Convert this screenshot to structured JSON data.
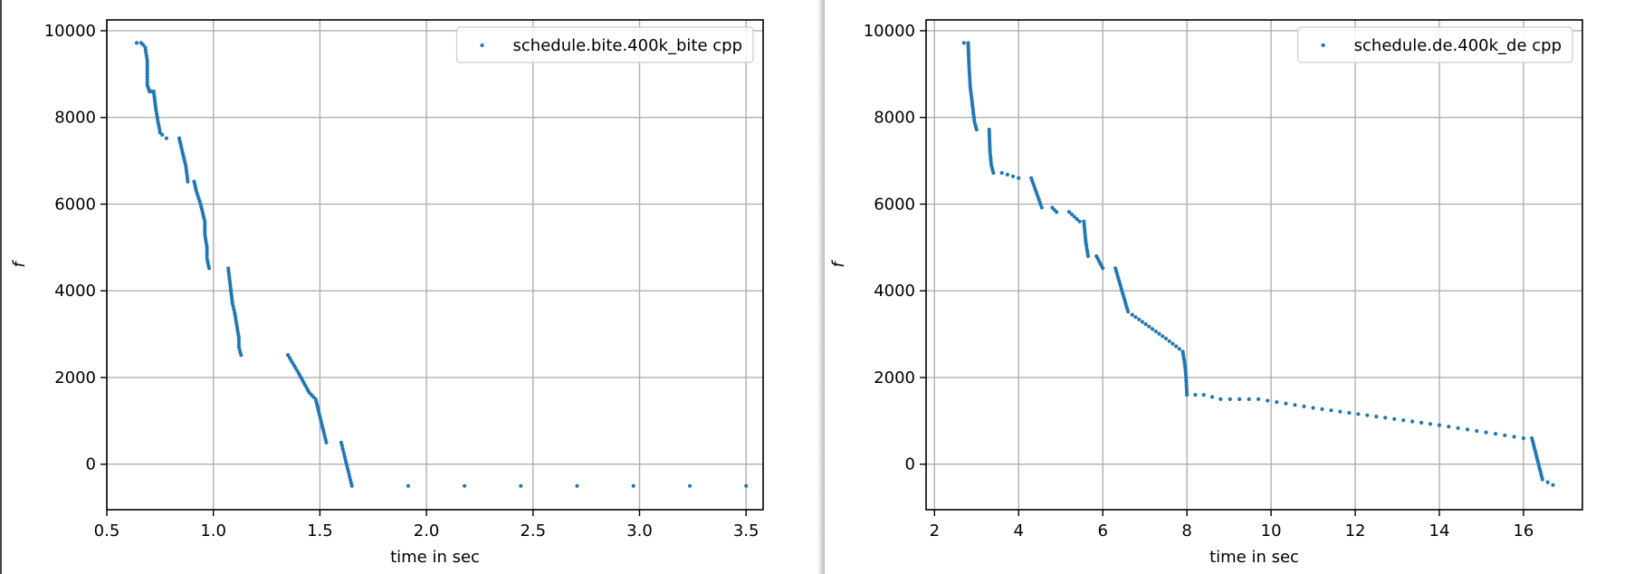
{
  "colors": {
    "series": "#1f77b4",
    "grid": "#b0b0b0",
    "frame": "#000000",
    "legend_border": "#cccccc"
  },
  "chart_data": [
    {
      "type": "scatter",
      "xlabel": "time in sec",
      "ylabel": "f",
      "xlim": [
        0.5,
        3.58
      ],
      "ylim": [
        -1050,
        10250
      ],
      "xticks": [
        0.5,
        1.0,
        1.5,
        2.0,
        2.5,
        3.0,
        3.5
      ],
      "xtick_labels": [
        "0.5",
        "1.0",
        "1.5",
        "2.0",
        "2.5",
        "3.0",
        "3.5"
      ],
      "yticks": [
        0,
        2000,
        4000,
        6000,
        8000,
        10000
      ],
      "ytick_labels": [
        "0",
        "2000",
        "4000",
        "6000",
        "8000",
        "10000"
      ],
      "grid": true,
      "legend_position": "top-right",
      "series": [
        {
          "name": "schedule.bite.400k_bite cpp",
          "points": [
            [
              0.64,
              9720
            ],
            [
              0.66,
              9720
            ],
            [
              0.67,
              9680
            ],
            [
              0.68,
              9620
            ],
            [
              0.69,
              9300
            ],
            [
              0.69,
              9000
            ],
            [
              0.69,
              8750
            ],
            [
              0.7,
              8600
            ],
            [
              0.71,
              8600
            ],
            [
              0.72,
              8600
            ],
            [
              0.73,
              8200
            ],
            [
              0.74,
              7900
            ],
            [
              0.75,
              7650
            ],
            [
              0.76,
              7600
            ],
            [
              0.78,
              7520
            ],
            [
              0.84,
              7520
            ],
            [
              0.85,
              7300
            ],
            [
              0.87,
              6900
            ],
            [
              0.88,
              6520
            ],
            [
              0.91,
              6520
            ],
            [
              0.92,
              6300
            ],
            [
              0.94,
              6000
            ],
            [
              0.96,
              5600
            ],
            [
              0.96,
              5300
            ],
            [
              0.97,
              5000
            ],
            [
              0.97,
              4750
            ],
            [
              0.98,
              4520
            ],
            [
              1.07,
              4520
            ],
            [
              1.08,
              4100
            ],
            [
              1.09,
              3700
            ],
            [
              1.1,
              3500
            ],
            [
              1.11,
              3200
            ],
            [
              1.12,
              2900
            ],
            [
              1.12,
              2700
            ],
            [
              1.13,
              2520
            ],
            [
              1.35,
              2520
            ],
            [
              1.4,
              2100
            ],
            [
              1.45,
              1650
            ],
            [
              1.48,
              1500
            ],
            [
              1.53,
              500
            ],
            [
              1.6,
              500
            ],
            [
              1.61,
              300
            ],
            [
              1.62,
              100
            ],
            [
              1.63,
              -100
            ],
            [
              1.64,
              -300
            ],
            [
              1.65,
              -500
            ],
            [
              3.5,
              -500
            ]
          ]
        }
      ]
    },
    {
      "type": "scatter",
      "xlabel": "time in sec",
      "ylabel": "f",
      "xlim": [
        1.8,
        17.4
      ],
      "ylim": [
        -1050,
        10250
      ],
      "xticks": [
        2,
        4,
        6,
        8,
        10,
        12,
        14,
        16
      ],
      "xtick_labels": [
        "2",
        "4",
        "6",
        "8",
        "10",
        "12",
        "14",
        "16"
      ],
      "yticks": [
        0,
        2000,
        4000,
        6000,
        8000,
        10000
      ],
      "ytick_labels": [
        "0",
        "2000",
        "4000",
        "6000",
        "8000",
        "10000"
      ],
      "grid": true,
      "legend_position": "top-right",
      "series": [
        {
          "name": "schedule.de.400k_de cpp",
          "points": [
            [
              2.7,
              9720
            ],
            [
              2.8,
              9720
            ],
            [
              2.82,
              9200
            ],
            [
              2.85,
              8700
            ],
            [
              2.9,
              8300
            ],
            [
              2.95,
              7900
            ],
            [
              3.0,
              7720
            ],
            [
              3.3,
              7720
            ],
            [
              3.32,
              7200
            ],
            [
              3.35,
              6900
            ],
            [
              3.4,
              6720
            ],
            [
              3.6,
              6720
            ],
            [
              4.0,
              6600
            ],
            [
              4.3,
              6600
            ],
            [
              4.55,
              5920
            ],
            [
              4.8,
              5920
            ],
            [
              4.9,
              5820
            ],
            [
              5.2,
              5820
            ],
            [
              5.45,
              5600
            ],
            [
              5.55,
              5600
            ],
            [
              5.6,
              5100
            ],
            [
              5.65,
              4800
            ],
            [
              5.85,
              4800
            ],
            [
              6.0,
              4520
            ],
            [
              6.3,
              4520
            ],
            [
              6.6,
              3520
            ],
            [
              6.7,
              3450
            ],
            [
              7.5,
              2900
            ],
            [
              7.9,
              2600
            ],
            [
              7.95,
              2300
            ],
            [
              7.98,
              2000
            ],
            [
              8.0,
              1600
            ],
            [
              8.4,
              1600
            ],
            [
              8.8,
              1500
            ],
            [
              9.7,
              1500
            ],
            [
              11.0,
              1300
            ],
            [
              12.5,
              1100
            ],
            [
              14.0,
              900
            ],
            [
              16.0,
              600
            ],
            [
              16.2,
              600
            ],
            [
              16.45,
              -350
            ],
            [
              16.7,
              -480
            ]
          ]
        }
      ]
    }
  ]
}
